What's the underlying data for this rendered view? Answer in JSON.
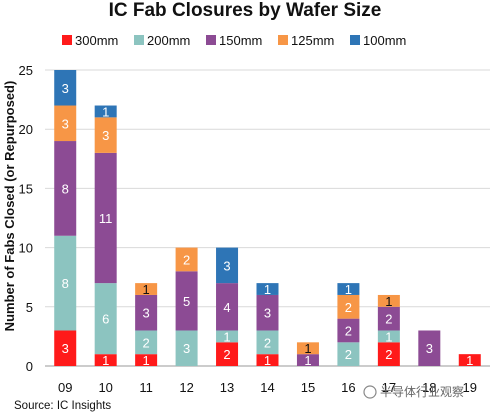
{
  "chart_data": {
    "type": "bar",
    "stacked": true,
    "title": "IC Fab Closures by Wafer Size",
    "ylabel": "Number of Fabs Closed (or Repurposed)",
    "xlabel": "",
    "ylim": [
      0,
      25
    ],
    "yticks": [
      0,
      5,
      10,
      15,
      20,
      25
    ],
    "grid": true,
    "legend_position": "top",
    "categories": [
      "09",
      "10",
      "11",
      "12",
      "13",
      "14",
      "15",
      "16",
      "17",
      "18",
      "19"
    ],
    "series": [
      {
        "name": "300mm",
        "color": "#ff1a1a",
        "values": [
          3,
          1,
          1,
          0,
          2,
          1,
          0,
          0,
          2,
          0,
          1
        ]
      },
      {
        "name": "200mm",
        "color": "#8cc4c0",
        "values": [
          8,
          6,
          2,
          3,
          1,
          2,
          0,
          2,
          1,
          0,
          0
        ]
      },
      {
        "name": "150mm",
        "color": "#8c4b94",
        "values": [
          8,
          11,
          3,
          5,
          4,
          3,
          1,
          2,
          2,
          3,
          0
        ]
      },
      {
        "name": "125mm",
        "color": "#f79646",
        "values": [
          3,
          3,
          1,
          2,
          0,
          0,
          1,
          2,
          1,
          0,
          0
        ]
      },
      {
        "name": "100mm",
        "color": "#2e75b6",
        "values": [
          3,
          1,
          0,
          0,
          3,
          1,
          0,
          1,
          0,
          0,
          0
        ]
      }
    ]
  },
  "source": "Source:  IC Insights",
  "watermark": "半导体行业观察"
}
